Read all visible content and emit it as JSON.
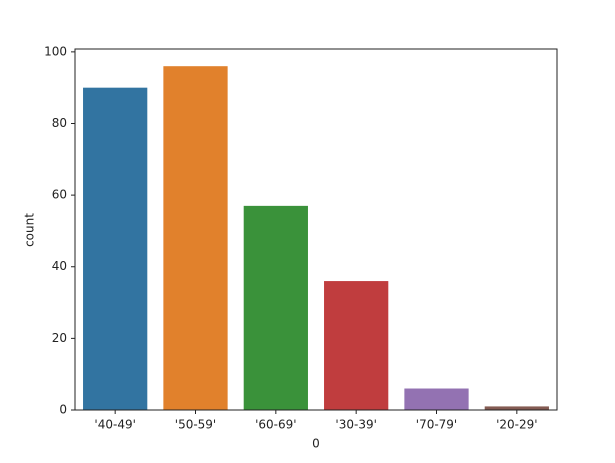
{
  "chart_data": {
    "type": "bar",
    "x_label": "0",
    "y_label": "count",
    "categories": [
      "'40-49'",
      "'50-59'",
      "'60-69'",
      "'30-39'",
      "'70-79'",
      "'20-29'"
    ],
    "values": [
      90,
      96,
      57,
      36,
      6,
      1
    ],
    "colors": [
      "#3274a1",
      "#e1812c",
      "#3a923a",
      "#c03d3e",
      "#9372b2",
      "#845b53"
    ],
    "ylim": [
      0,
      100.8
    ],
    "yticks": [
      0,
      20,
      40,
      60,
      80,
      100
    ],
    "grid": false
  }
}
